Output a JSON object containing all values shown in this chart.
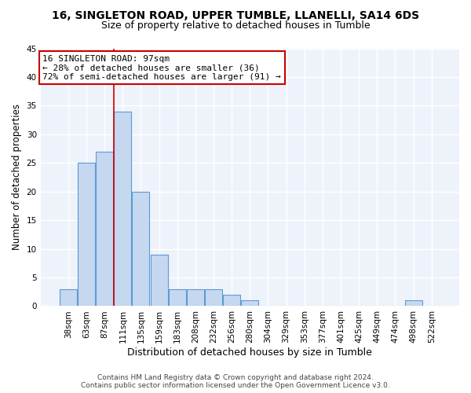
{
  "title1": "16, SINGLETON ROAD, UPPER TUMBLE, LLANELLI, SA14 6DS",
  "title2": "Size of property relative to detached houses in Tumble",
  "xlabel": "Distribution of detached houses by size in Tumble",
  "ylabel": "Number of detached properties",
  "categories": [
    "38sqm",
    "63sqm",
    "87sqm",
    "111sqm",
    "135sqm",
    "159sqm",
    "183sqm",
    "208sqm",
    "232sqm",
    "256sqm",
    "280sqm",
    "304sqm",
    "329sqm",
    "353sqm",
    "377sqm",
    "401sqm",
    "425sqm",
    "449sqm",
    "474sqm",
    "498sqm",
    "522sqm"
  ],
  "values": [
    3,
    25,
    27,
    34,
    20,
    9,
    3,
    3,
    3,
    2,
    1,
    0,
    0,
    0,
    0,
    0,
    0,
    0,
    0,
    1,
    0
  ],
  "bar_color": "#c5d8f0",
  "bar_edge_color": "#5b9bd5",
  "red_line_x": 2.5,
  "annotation_text": "16 SINGLETON ROAD: 97sqm\n← 28% of detached houses are smaller (36)\n72% of semi-detached houses are larger (91) →",
  "annotation_box_color": "#ffffff",
  "annotation_border_color": "#cc0000",
  "ylim": [
    0,
    45
  ],
  "yticks": [
    0,
    5,
    10,
    15,
    20,
    25,
    30,
    35,
    40,
    45
  ],
  "footer1": "Contains HM Land Registry data © Crown copyright and database right 2024.",
  "footer2": "Contains public sector information licensed under the Open Government Licence v3.0.",
  "background_color": "#eef2fa",
  "grid_color": "#ffffff",
  "title1_fontsize": 10,
  "title2_fontsize": 9,
  "xlabel_fontsize": 9,
  "ylabel_fontsize": 8.5,
  "tick_fontsize": 7.5,
  "annotation_fontsize": 8,
  "footer_fontsize": 6.5
}
